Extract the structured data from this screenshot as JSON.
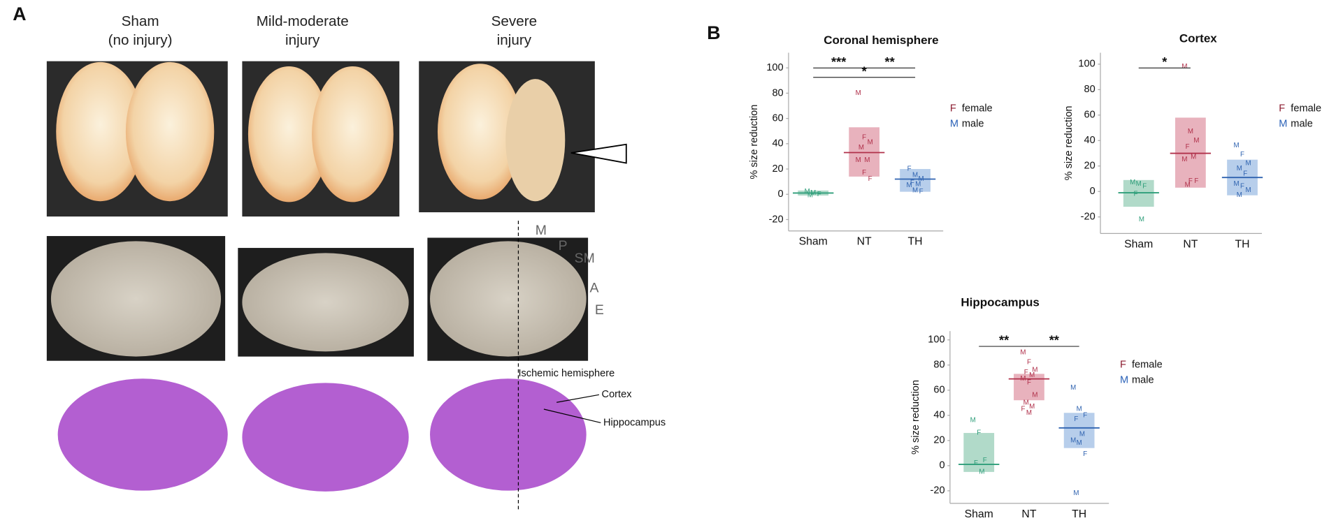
{
  "panel_a": {
    "label": "A",
    "columns": [
      [
        "Sham",
        "(no injury)"
      ],
      [
        "Mild-moderate",
        "injury"
      ],
      [
        "Severe",
        "injury"
      ]
    ],
    "region_labels": [
      "M",
      "P",
      "SM",
      "A",
      "E"
    ],
    "annotations": [
      "Ischemic hemisphere",
      "Cortex",
      "Hippocampus"
    ]
  },
  "panel_b": {
    "label": "B"
  },
  "chart_data": [
    {
      "type": "crossbar",
      "title": "Coronal hemisphere",
      "y_label": "% size reduction",
      "categories": [
        "Sham",
        "NT",
        "TH"
      ],
      "colors": [
        "#2e9e7a",
        "#b0304a",
        "#2f63b0"
      ],
      "box_colors": [
        "#a3d4c0",
        "#e4a5b1",
        "#aac5e8"
      ],
      "ylim": [
        -29,
        112
      ],
      "yticks": [
        -20,
        0,
        20,
        40,
        60,
        80,
        100
      ],
      "means": [
        1,
        33,
        12
      ],
      "box_low": [
        -1,
        14,
        2
      ],
      "box_high": [
        3,
        53,
        20
      ],
      "points": [
        [
          {
            "label": "M",
            "value": 2
          },
          {
            "label": "M",
            "value": 1
          },
          {
            "label": "F",
            "value": 0
          },
          {
            "label": "M",
            "value": -1
          }
        ],
        [
          {
            "label": "M",
            "value": 80
          },
          {
            "label": "F",
            "value": 45
          },
          {
            "label": "M",
            "value": 41
          },
          {
            "label": "M",
            "value": 37
          },
          {
            "label": "M",
            "value": 27
          },
          {
            "label": "M",
            "value": 27
          },
          {
            "label": "F",
            "value": 17
          },
          {
            "label": "F",
            "value": 12
          }
        ],
        [
          {
            "label": "F",
            "value": 20
          },
          {
            "label": "M",
            "value": 15
          },
          {
            "label": "M",
            "value": 12
          },
          {
            "label": "F",
            "value": 9
          },
          {
            "label": "M",
            "value": 8
          },
          {
            "label": "M",
            "value": 7
          },
          {
            "label": "M",
            "value": 3
          },
          {
            "label": "F",
            "value": 2
          }
        ]
      ],
      "significance": [
        {
          "from": 0,
          "to": 1,
          "label": "***"
        },
        {
          "from": 1,
          "to": 2,
          "label": "**"
        },
        {
          "from": 0,
          "to": 2,
          "label": "*"
        }
      ],
      "legend": [
        {
          "marker": "F",
          "name": "female",
          "color": "#8b1a2e"
        },
        {
          "marker": "M",
          "name": "male",
          "color": "#2b62b8"
        }
      ]
    },
    {
      "type": "crossbar",
      "title": "Cortex",
      "y_label": "% size reduction",
      "categories": [
        "Sham",
        "NT",
        "TH"
      ],
      "colors": [
        "#2e9e7a",
        "#b0304a",
        "#2f63b0"
      ],
      "box_colors": [
        "#a3d4c0",
        "#e4a5b1",
        "#aac5e8"
      ],
      "ylim": [
        -33,
        109
      ],
      "yticks": [
        -20,
        0,
        20,
        40,
        60,
        80,
        100
      ],
      "means": [
        -1,
        30,
        11
      ],
      "box_low": [
        -12,
        3,
        -3
      ],
      "box_high": [
        9,
        58,
        25
      ],
      "points": [
        [
          {
            "label": "M",
            "value": 7
          },
          {
            "label": "M",
            "value": 6
          },
          {
            "label": "F",
            "value": 4
          },
          {
            "label": "F",
            "value": -2
          },
          {
            "label": "M",
            "value": -22
          }
        ],
        [
          {
            "label": "M",
            "value": 98
          },
          {
            "label": "M",
            "value": 47
          },
          {
            "label": "M",
            "value": 40
          },
          {
            "label": "F",
            "value": 35
          },
          {
            "label": "M",
            "value": 27
          },
          {
            "label": "M",
            "value": 25
          },
          {
            "label": "F",
            "value": 8
          },
          {
            "label": "F",
            "value": 8
          },
          {
            "label": "M",
            "value": 5
          }
        ],
        [
          {
            "label": "M",
            "value": 36
          },
          {
            "label": "F",
            "value": 29
          },
          {
            "label": "M",
            "value": 22
          },
          {
            "label": "M",
            "value": 18
          },
          {
            "label": "F",
            "value": 14
          },
          {
            "label": "M",
            "value": 6
          },
          {
            "label": "F",
            "value": 4
          },
          {
            "label": "M",
            "value": 1
          },
          {
            "label": "M",
            "value": -3
          }
        ]
      ],
      "significance": [
        {
          "from": 0,
          "to": 1,
          "label": "*"
        }
      ],
      "legend": [
        {
          "marker": "F",
          "name": "female",
          "color": "#8b1a2e"
        },
        {
          "marker": "M",
          "name": "male",
          "color": "#2b62b8"
        }
      ]
    },
    {
      "type": "crossbar",
      "title": "Hippocampus",
      "y_label": "% size reduction",
      "categories": [
        "Sham",
        "NT",
        "TH"
      ],
      "colors": [
        "#2e9e7a",
        "#b0304a",
        "#2f63b0"
      ],
      "box_colors": [
        "#a3d4c0",
        "#e4a5b1",
        "#aac5e8"
      ],
      "ylim": [
        -30,
        107
      ],
      "yticks": [
        -20,
        0,
        20,
        40,
        60,
        80,
        100
      ],
      "means": [
        1,
        69,
        30
      ],
      "box_low": [
        -5,
        52,
        14
      ],
      "box_high": [
        26,
        73,
        42
      ],
      "points": [
        [
          {
            "label": "M",
            "value": 36
          },
          {
            "label": "F",
            "value": 26
          },
          {
            "label": "F",
            "value": 4
          },
          {
            "label": "F",
            "value": 2
          },
          {
            "label": "M",
            "value": -5
          }
        ],
        [
          {
            "label": "M",
            "value": 90
          },
          {
            "label": "F",
            "value": 82
          },
          {
            "label": "M",
            "value": 76
          },
          {
            "label": "F",
            "value": 74
          },
          {
            "label": "M",
            "value": 72
          },
          {
            "label": "M",
            "value": 69
          },
          {
            "label": "F",
            "value": 66
          },
          {
            "label": "M",
            "value": 56
          },
          {
            "label": "M",
            "value": 50
          },
          {
            "label": "M",
            "value": 47
          },
          {
            "label": "F",
            "value": 45
          },
          {
            "label": "M",
            "value": 42
          }
        ],
        [
          {
            "label": "M",
            "value": 62
          },
          {
            "label": "M",
            "value": 45
          },
          {
            "label": "F",
            "value": 40
          },
          {
            "label": "F",
            "value": 37
          },
          {
            "label": "M",
            "value": 25
          },
          {
            "label": "M",
            "value": 20
          },
          {
            "label": "M",
            "value": 18
          },
          {
            "label": "F",
            "value": 9
          },
          {
            "label": "M",
            "value": -22
          }
        ]
      ],
      "significance": [
        {
          "from": 0,
          "to": 1,
          "label": "**"
        },
        {
          "from": 1,
          "to": 2,
          "label": "**"
        }
      ],
      "legend": [
        {
          "marker": "F",
          "name": "female",
          "color": "#8b1a2e"
        },
        {
          "marker": "M",
          "name": "male",
          "color": "#2b62b8"
        }
      ]
    }
  ]
}
